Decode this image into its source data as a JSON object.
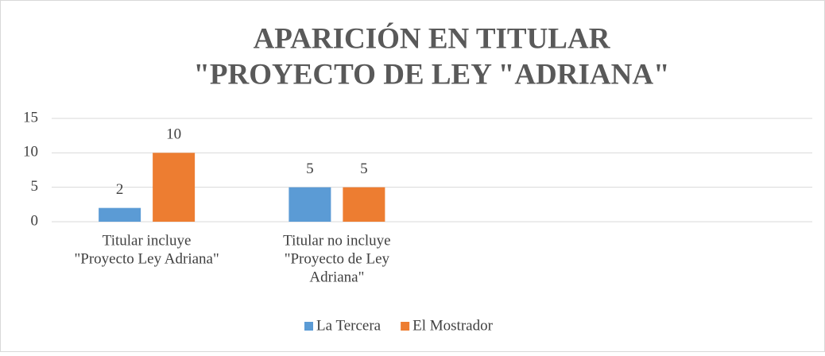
{
  "chart_data": {
    "type": "bar",
    "title": [
      "APARICIÓN EN TITULAR",
      "\"PROYECTO DE LEY \"ADRIANA\""
    ],
    "categories": [
      [
        "Titular incluye",
        "\"Proyecto Ley Adriana\""
      ],
      [
        "Titular no incluye",
        "\"Proyecto de Ley",
        "Adriana\""
      ],
      null,
      null
    ],
    "series": [
      {
        "name": "La Tercera",
        "color": "#5b9bd5",
        "values": [
          2,
          5,
          null,
          null
        ]
      },
      {
        "name": "El Mostrador",
        "color": "#ed7d31",
        "values": [
          10,
          5,
          null,
          null
        ]
      }
    ],
    "ylim": [
      0,
      15
    ],
    "yticks": [
      0,
      5,
      10,
      15
    ],
    "grid": true,
    "legend": "bottom"
  }
}
